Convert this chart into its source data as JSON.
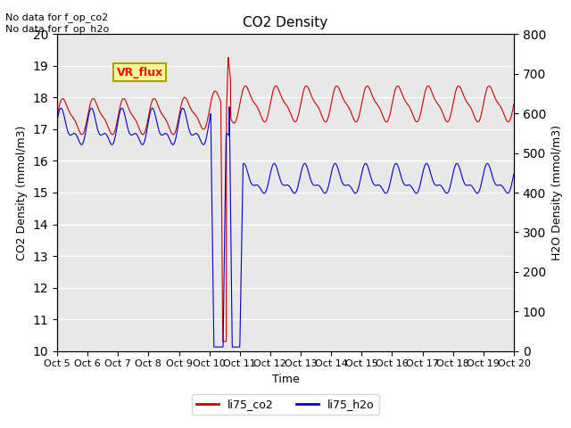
{
  "title": "CO2 Density",
  "xlabel": "Time",
  "ylabel_left": "CO2 Density (mmol/m3)",
  "ylabel_right": "H2O Density (mmol/m3)",
  "ylim_left": [
    10.0,
    20.0
  ],
  "ylim_right": [
    0,
    800
  ],
  "yticks_left": [
    10.0,
    11.0,
    12.0,
    13.0,
    14.0,
    15.0,
    16.0,
    17.0,
    18.0,
    19.0,
    20.0
  ],
  "yticks_right": [
    0,
    100,
    200,
    300,
    400,
    500,
    600,
    700,
    800
  ],
  "xtick_labels": [
    "Oct 5",
    "Oct 6",
    "Oct 7",
    "Oct 8",
    "Oct 9",
    "Oct 10",
    "Oct 11",
    "Oct 12",
    "Oct 13",
    "Oct 14",
    "Oct 15",
    "Oct 16",
    "Oct 17",
    "Oct 18",
    "Oct 19",
    "Oct 20"
  ],
  "no_data_text": "No data for f_op_co2\nNo data for f_op_h2o",
  "vr_flux_label": "VR_flux",
  "legend_labels": [
    "li75_co2",
    "li75_h2o"
  ],
  "legend_colors": [
    "#cc0000",
    "#0000cc"
  ],
  "bg_color": "#e8e8e8",
  "grid_color": "#ffffff",
  "co2_color": "#cc0000",
  "h2o_color": "#0000cc"
}
